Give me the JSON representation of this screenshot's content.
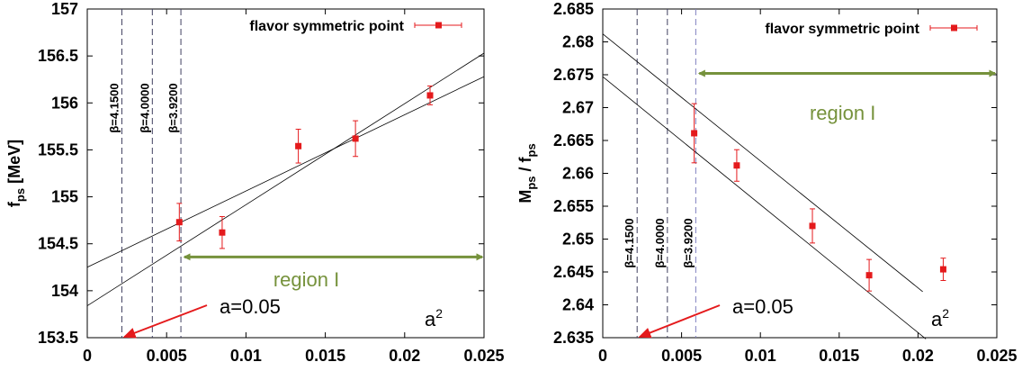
{
  "chart_data": [
    {
      "type": "scatter",
      "ylabel": "f",
      "ylabel_sub": "ps",
      "ylabel_suffix": " [MeV]",
      "xlim": [
        0,
        0.025
      ],
      "ylim": [
        153.5,
        157
      ],
      "xticks": [
        "0",
        "0.005",
        "0.01",
        "0.015",
        "0.02",
        "0.025"
      ],
      "yticks": [
        "153.5",
        "154",
        "154.5",
        "155",
        "155.5",
        "156",
        "156.5",
        "157"
      ],
      "grid": false,
      "legend_position": "top-right",
      "series": [
        {
          "name": "flavor symmetric point",
          "color": "#e41a1c",
          "points": [
            {
              "x": 0.0058,
              "y": 154.73,
              "err": 0.2
            },
            {
              "x": 0.0085,
              "y": 154.62,
              "err": 0.17
            },
            {
              "x": 0.0133,
              "y": 155.54,
              "err": 0.18
            },
            {
              "x": 0.0169,
              "y": 155.62,
              "err": 0.19
            },
            {
              "x": 0.0216,
              "y": 156.08,
              "err": 0.1
            }
          ]
        }
      ],
      "fit_lines": [
        {
          "x": [
            0,
            0.025
          ],
          "y": [
            154.25,
            156.28
          ]
        },
        {
          "x": [
            0,
            0.025
          ],
          "y": [
            153.84,
            156.53
          ]
        }
      ],
      "beta_lines": [
        {
          "x": 0.00218,
          "label": "β=4.1500",
          "color": "#404060"
        },
        {
          "x": 0.0041,
          "label": "β=4.0000",
          "color": "#404060"
        },
        {
          "x": 0.0059,
          "label": "β=3.9200",
          "color": "#404060"
        }
      ],
      "region": {
        "label": "region I",
        "x_from": 0.0059,
        "x_to": 0.025,
        "y": 154.36
      },
      "annotation": {
        "text": "a=0.05",
        "x": 0.00218
      },
      "axis_note": "a",
      "axis_note_sup": "2"
    },
    {
      "type": "scatter",
      "ylabel": "M",
      "ylabel_sub": "ps",
      "ylabel_mid": " / f",
      "ylabel_sub2": "ps",
      "xlim": [
        0,
        0.025
      ],
      "ylim": [
        2.635,
        2.685
      ],
      "xticks": [
        "0",
        "0.005",
        "0.01",
        "0.015",
        "0.02",
        "0.025"
      ],
      "yticks": [
        "2.635",
        "2.64",
        "2.645",
        "2.65",
        "2.655",
        "2.66",
        "2.665",
        "2.67",
        "2.675",
        "2.68",
        "2.685"
      ],
      "grid": false,
      "legend_position": "top-right",
      "series": [
        {
          "name": "flavor symmetric point",
          "color": "#e41a1c",
          "points": [
            {
              "x": 0.0058,
              "y": 2.6661,
              "err": 0.0045
            },
            {
              "x": 0.0085,
              "y": 2.6612,
              "err": 0.0024
            },
            {
              "x": 0.0133,
              "y": 2.652,
              "err": 0.0026
            },
            {
              "x": 0.0169,
              "y": 2.6445,
              "err": 0.0024
            },
            {
              "x": 0.0216,
              "y": 2.6454,
              "err": 0.0017
            }
          ]
        }
      ],
      "fit_lines": [
        {
          "x": [
            0,
            0.0203
          ],
          "y": [
            2.6812,
            2.642
          ]
        },
        {
          "x": [
            0,
            0.0205
          ],
          "y": [
            2.6747,
            2.6348
          ]
        }
      ],
      "beta_lines": [
        {
          "x": 0.00218,
          "label": "β=4.1500",
          "color": "#404060"
        },
        {
          "x": 0.0041,
          "label": "β=4.0000",
          "color": "#404060"
        },
        {
          "x": 0.0059,
          "label": "β=3.9200",
          "color": "#8080c0"
        }
      ],
      "region": {
        "label": "region I",
        "x_from": 0.0059,
        "x_to": 0.025,
        "y": 2.6752
      },
      "annotation": {
        "text": "a=0.05",
        "x": 0.00218
      },
      "axis_note": "a",
      "axis_note_sup": "2"
    }
  ]
}
